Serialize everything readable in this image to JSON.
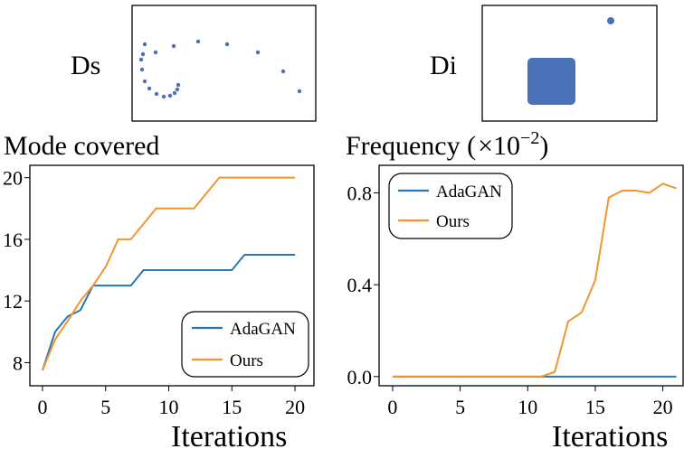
{
  "panels": {
    "ds": {
      "label": "Ds"
    },
    "di": {
      "label": "Di"
    }
  },
  "colors": {
    "adagan": "#2878b5",
    "ours": "#f0962e",
    "points": "#4a72b8"
  },
  "chart_data": [
    {
      "type": "scatter",
      "title": "Ds",
      "x": [
        160,
        158,
        156,
        157,
        160,
        165,
        173,
        181,
        188,
        193,
        196,
        197,
        172,
        192,
        219,
        251,
        285,
        313,
        331
      ],
      "y": [
        -49,
        -60,
        -66,
        -77,
        -90,
        -98,
        -104,
        -107,
        -106,
        -103,
        -99,
        -94,
        -58,
        -51,
        -46,
        -49,
        -58,
        -79,
        -101
      ],
      "xlim": [
        144,
        349
      ],
      "ylim": [
        -130,
        -5
      ]
    },
    {
      "type": "scatter",
      "title": "Di",
      "x": [
        675
      ],
      "y": [
        -23
      ],
      "xlim": [
        532,
        727
      ],
      "ylim": [
        -130,
        -5
      ]
    },
    {
      "type": "line",
      "title": "Mode covered",
      "xlabel": "Iterations",
      "ylabel": "",
      "xlim": [
        -1,
        21.5
      ],
      "ylim": [
        6.5,
        20.8
      ],
      "xticks": [
        0,
        5,
        10,
        15,
        20
      ],
      "yticks": [
        8,
        12,
        16,
        20
      ],
      "x": [
        0,
        1,
        2,
        3,
        4,
        5,
        6,
        7,
        8,
        9,
        10,
        11,
        12,
        13,
        14,
        15,
        16,
        17,
        18,
        19,
        20
      ],
      "series": [
        {
          "name": "AdaGAN",
          "values": [
            7.5,
            10,
            11,
            11.4,
            13,
            13,
            13,
            13,
            14,
            14,
            14,
            14,
            14,
            14,
            14,
            14,
            15,
            15,
            15,
            15,
            15
          ]
        },
        {
          "name": "Ours",
          "values": [
            7.5,
            9.5,
            10.7,
            12,
            13,
            14.2,
            16,
            16,
            17,
            18,
            18,
            18,
            18,
            19,
            20,
            20,
            20,
            20,
            20,
            20,
            20
          ]
        }
      ],
      "legend": "bottom-right"
    },
    {
      "type": "line",
      "title": "Frequency (×10⁻²)",
      "xlabel": "Iterations",
      "ylabel": "",
      "xlim": [
        -1,
        21.5
      ],
      "ylim": [
        -0.04,
        0.92
      ],
      "xticks": [
        0,
        5,
        10,
        15,
        20
      ],
      "yticks": [
        0.0,
        0.4,
        0.8
      ],
      "x": [
        0,
        1,
        2,
        3,
        4,
        5,
        6,
        7,
        8,
        9,
        10,
        11,
        12,
        13,
        14,
        15,
        16,
        17,
        18,
        19,
        20,
        21
      ],
      "series": [
        {
          "name": "AdaGAN",
          "values": [
            0,
            0,
            0,
            0,
            0,
            0,
            0,
            0,
            0,
            0,
            0,
            0,
            0,
            0,
            0,
            0,
            0,
            0,
            0,
            0,
            0,
            0
          ]
        },
        {
          "name": "Ours",
          "values": [
            0,
            0,
            0,
            0,
            0,
            0,
            0,
            0,
            0,
            0,
            0,
            0,
            0.02,
            0.24,
            0.28,
            0.42,
            0.78,
            0.81,
            0.81,
            0.8,
            0.84,
            0.82
          ]
        }
      ],
      "legend": "top-left"
    }
  ],
  "text": {
    "left_title": "Mode covered",
    "right_title_main": "Frequency (",
    "right_title_mult": "×10",
    "right_title_exp": "−2",
    "right_title_close": ")",
    "xlabel_left": "Iterations",
    "xlabel_right": "Iterations",
    "legend_adagan": "AdaGAN",
    "legend_ours": "Ours"
  }
}
